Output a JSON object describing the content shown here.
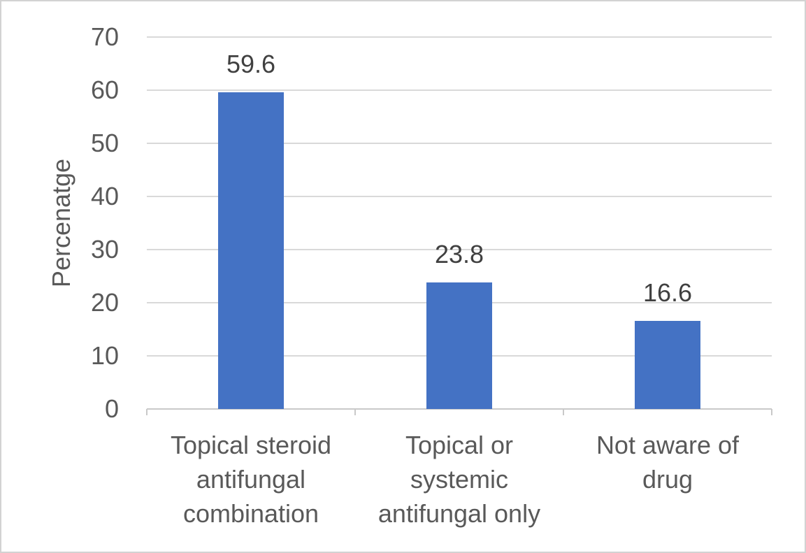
{
  "chart_data": {
    "type": "bar",
    "title": "",
    "xlabel": "",
    "ylabel": "Percenatge",
    "categories": [
      "Topical steroid antifungal combination",
      "Topical or systemic antifungal only",
      "Not aware of drug"
    ],
    "category_lines": [
      [
        "Topical steroid",
        "antifungal",
        "combination"
      ],
      [
        "Topical or",
        "systemic",
        "antifungal only"
      ],
      [
        "Not aware of",
        "drug"
      ]
    ],
    "values": [
      59.6,
      23.8,
      16.6
    ],
    "data_labels": [
      "59.6",
      "23.8",
      "16.6"
    ],
    "ylim": [
      0,
      70
    ],
    "yticks": [
      0,
      10,
      20,
      30,
      40,
      50,
      60,
      70
    ],
    "ytick_labels": [
      "0",
      "10",
      "20",
      "30",
      "40",
      "50",
      "60",
      "70"
    ],
    "grid": true,
    "legend": "none",
    "colors": {
      "bar": "#4472C4",
      "gridline": "#D9D9D9",
      "axis_line": "#C9C9C9",
      "axis_text": "#595959",
      "data_label": "#404040",
      "frame_border": "#D2D2D2",
      "background": "#FFFFFF"
    }
  }
}
